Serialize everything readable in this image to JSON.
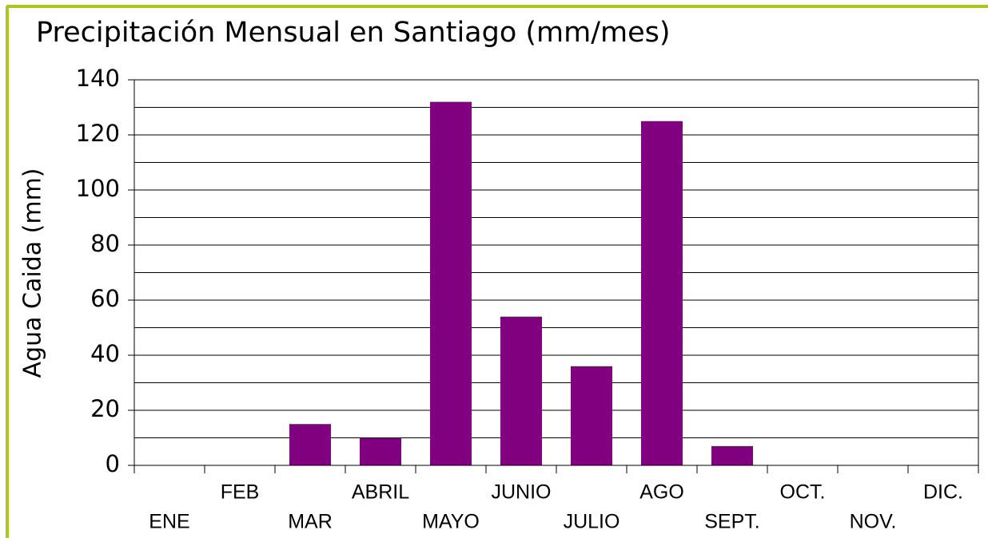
{
  "chart_data": {
    "type": "bar",
    "title": "Precipitación Mensual en Santiago (mm/mes)",
    "y_label": "Agua Caida (mm)",
    "categories": [
      "ENE",
      "FEB",
      "MAR",
      "ABRIL",
      "MAYO",
      "JUNIO",
      "JULIO",
      "AGO",
      "SEPT.",
      "OCT.",
      "NOV.",
      "DIC."
    ],
    "values": [
      0,
      0,
      15,
      10,
      132,
      54,
      36,
      125,
      7,
      0,
      0,
      0
    ],
    "color": "#800080",
    "ylim": [
      0,
      140
    ],
    "yticks": [
      0,
      20,
      40,
      60,
      80,
      100,
      120,
      140
    ],
    "minor_yticks": [
      10,
      30,
      50,
      70,
      90,
      110,
      130
    ],
    "grid": true
  }
}
